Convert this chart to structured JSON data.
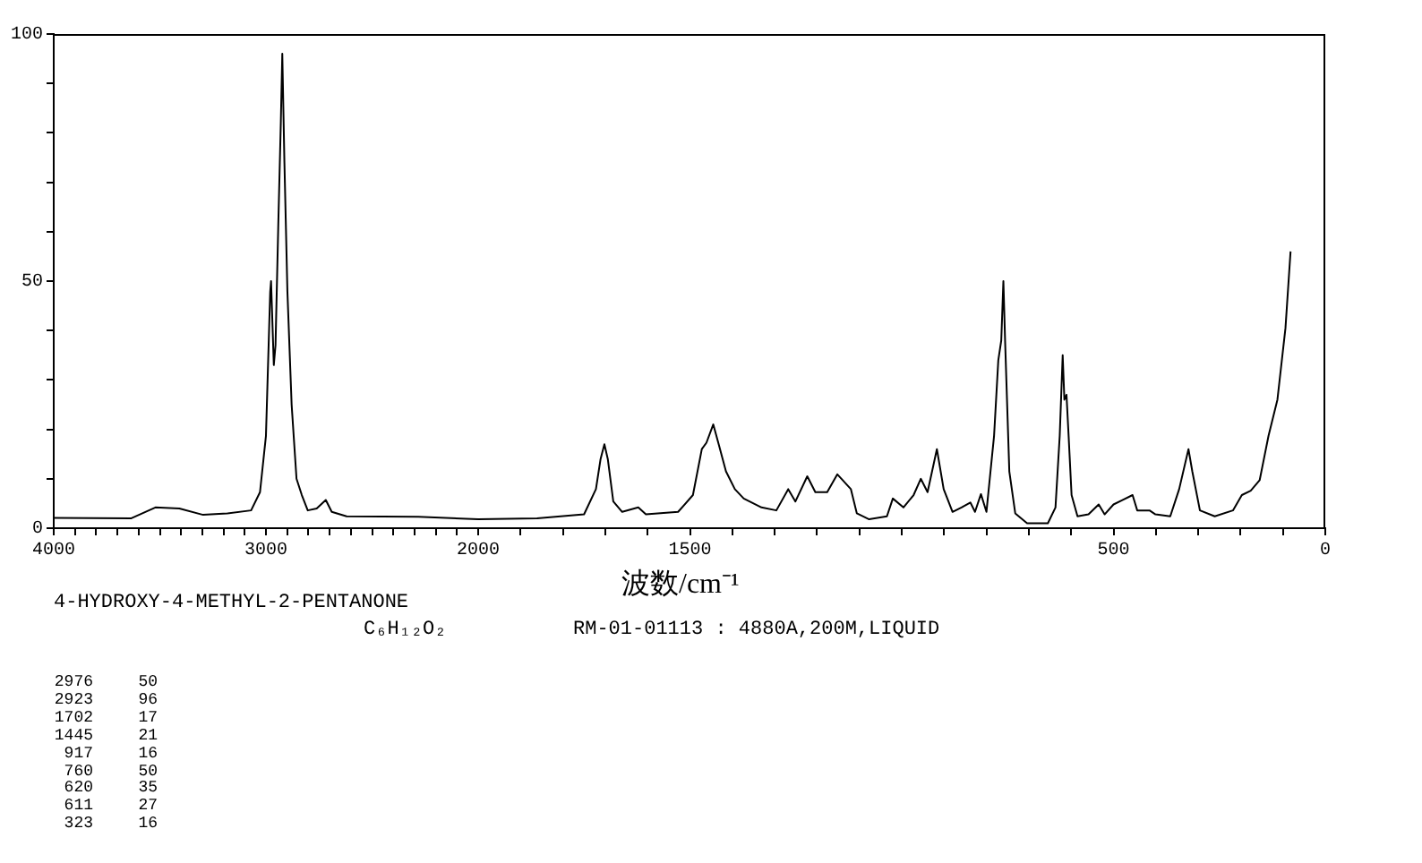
{
  "chart_data": [
    {
      "type": "line",
      "xlim": [
        4000,
        2000
      ],
      "xticks": [
        4000,
        {
          "value": 3900,
          "label": null
        },
        {
          "value": 3800,
          "label": null
        },
        {
          "value": 3700,
          "label": null
        },
        {
          "value": 3600,
          "label": null
        },
        {
          "value": 3500,
          "label": null
        },
        {
          "value": 3400,
          "label": null
        },
        {
          "value": 3300,
          "label": null
        },
        {
          "value": 3200,
          "label": null
        },
        {
          "value": 3100,
          "label": null
        },
        3000,
        {
          "value": 2900,
          "label": null
        },
        {
          "value": 2800,
          "label": null
        },
        {
          "value": 2700,
          "label": null
        },
        {
          "value": 2600,
          "label": null
        },
        {
          "value": 2500,
          "label": null
        },
        {
          "value": 2400,
          "label": null
        },
        {
          "value": 2300,
          "label": null
        },
        {
          "value": 2200,
          "label": null
        },
        {
          "value": 2100,
          "label": null
        },
        2000
      ],
      "ylim": [
        0,
        100
      ],
      "yticks": [
        0,
        {
          "value": 10,
          "label": null
        },
        {
          "value": 20,
          "label": null
        },
        {
          "value": 30,
          "label": null
        },
        {
          "value": 40,
          "label": null
        },
        50,
        {
          "value": 60,
          "label": null
        },
        {
          "value": 70,
          "label": null
        },
        {
          "value": 80,
          "label": null
        },
        {
          "value": 90,
          "label": null
        },
        100
      ],
      "series": [
        {
          "color": "#000000",
          "x": [
            4000,
            3634,
            3521,
            3408,
            3296,
            3183,
            3070,
            3028,
            3000,
            2980,
            2976,
            2963,
            2955,
            2941,
            2930,
            2923,
            2913,
            2899,
            2879,
            2856,
            2831,
            2803,
            2761,
            2718,
            2690,
            2620,
            2282,
            2000
          ],
          "values": [
            2.1,
            2,
            4.2,
            4,
            2.7,
            3,
            3.6,
            7.3,
            18.7,
            47.8,
            50,
            33,
            37,
            63,
            82,
            96,
            74,
            48,
            25,
            10,
            6.7,
            3.6,
            4,
            5.7,
            3.3,
            2.4,
            2.3,
            1.8
          ]
        }
      ],
      "annotations": [
        "4-HYDROXY-4-METHYL-2-PENTANONE",
        "C₆H₁₂O₂",
        "RM-01-01113 : 4880A,200M,LIQUID",
        "2976 50",
        "2923 96",
        "1702 17",
        "1445 21",
        "917 16",
        "760 50",
        "620 35",
        "611 27",
        "323 16"
      ]
    },
    {
      "type": "line",
      "xlim": [
        2000,
        0
      ],
      "tick_labels": "x",
      "xlabel": "波数/cm⁻¹",
      "xticks": [
        {
          "value": 2000,
          "label": null
        },
        {
          "value": 1900,
          "label": null
        },
        {
          "value": 1800,
          "label": null
        },
        {
          "value": 1700,
          "label": null
        },
        {
          "value": 1600,
          "label": null
        },
        1500,
        {
          "value": 1400,
          "label": null
        },
        {
          "value": 1300,
          "label": null
        },
        {
          "value": 1200,
          "label": null
        },
        {
          "value": 1100,
          "label": null
        },
        {
          "value": 1000,
          "label": null
        },
        {
          "value": 900,
          "label": null
        },
        {
          "value": 800,
          "label": null
        },
        {
          "value": 700,
          "label": null
        },
        {
          "value": 600,
          "label": null
        },
        500,
        {
          "value": 400,
          "label": null
        },
        {
          "value": 300,
          "label": null
        },
        {
          "value": 200,
          "label": null
        },
        {
          "value": 100,
          "label": null
        },
        0
      ],
      "ylim": [
        0,
        100
      ],
      "series": [
        {
          "color": "#000000",
          "x": [
            2000,
            1861,
            1750,
            1722,
            1711,
            1702,
            1694,
            1681,
            1660,
            1622,
            1604,
            1528,
            1493,
            1472,
            1461,
            1445,
            1430,
            1415,
            1394,
            1373,
            1331,
            1296,
            1268,
            1251,
            1223,
            1204,
            1176,
            1152,
            1120,
            1106,
            1077,
            1035,
            1021,
            996,
            972,
            955,
            939,
            917,
            901,
            880,
            859,
            838,
            827,
            813,
            800,
            782,
            772,
            765,
            760,
            756,
            746,
            732,
            704,
            655,
            637,
            627,
            620,
            616,
            611,
            606,
            599,
            585,
            559,
            535,
            521,
            500,
            479,
            455,
            444,
            415,
            401,
            366,
            345,
            323,
            314,
            296,
            261,
            218,
            197,
            176,
            155,
            134,
            113,
            94,
            82
          ],
          "values": [
            1.8,
            2,
            2.8,
            7.9,
            14,
            17,
            14,
            5.4,
            3.3,
            4.2,
            2.8,
            3.3,
            6.7,
            16,
            17.3,
            21,
            16.3,
            11.5,
            7.9,
            6,
            4.2,
            3.6,
            7.9,
            5.4,
            10.5,
            7.3,
            7.3,
            10.9,
            7.9,
            3,
            1.8,
            2.4,
            6,
            4.2,
            6.7,
            10,
            7.3,
            16,
            7.9,
            3.3,
            4.2,
            5.2,
            3.3,
            6.9,
            3.3,
            18.7,
            34,
            38,
            50,
            38,
            11.5,
            3,
            1,
            1,
            4.2,
            18.7,
            35,
            26,
            27,
            18.7,
            6.7,
            2.4,
            2.8,
            4.8,
            2.8,
            4.8,
            5.7,
            6.7,
            3.6,
            3.6,
            2.8,
            2.4,
            7.9,
            16,
            11.5,
            3.6,
            2.4,
            3.6,
            6.7,
            7.6,
            9.7,
            18.7,
            26,
            40.5,
            56
          ]
        }
      ]
    }
  ]
}
